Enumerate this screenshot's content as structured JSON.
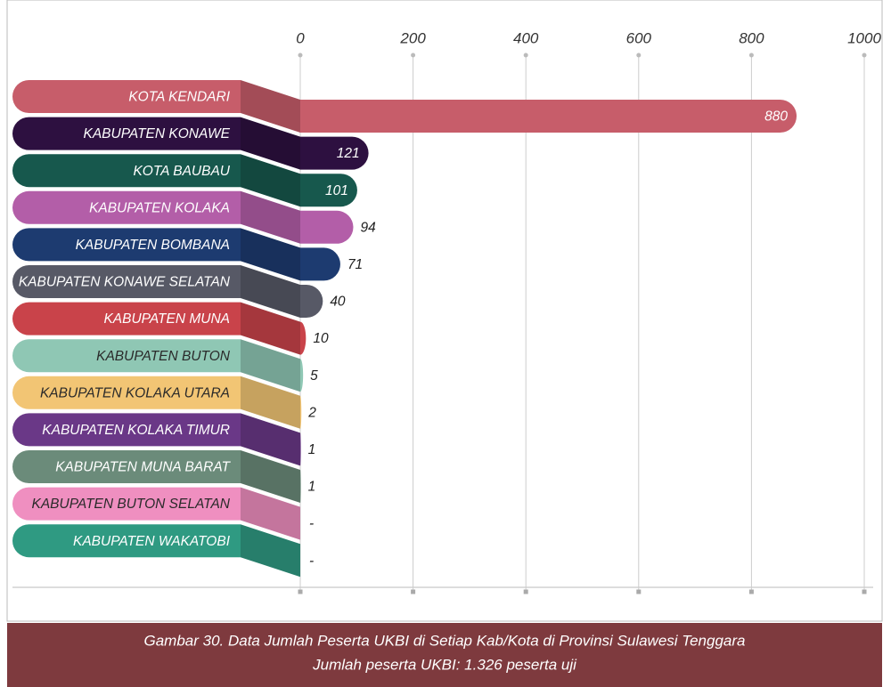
{
  "chart_data": {
    "type": "bar",
    "orientation": "horizontal",
    "title": "Gambar 30. Data Jumlah Peserta UKBI di Setiap Kab/Kota di Provinsi Sulawesi Tenggara",
    "subtitle": "Jumlah peserta UKBI: 1.326 peserta uji",
    "categories": [
      "KOTA KENDARI",
      "KABUPATEN KONAWE",
      "KOTA BAUBAU",
      "KABUPATEN KOLAKA",
      "KABUPATEN BOMBANA",
      "KABUPATEN KONAWE SELATAN",
      "KABUPATEN MUNA",
      "KABUPATEN BUTON",
      "KABUPATEN KOLAKA UTARA",
      "KABUPATEN KOLAKA TIMUR",
      "KABUPATEN MUNA BARAT",
      "KABUPATEN BUTON SELATAN",
      "KABUPATEN WAKATOBI"
    ],
    "values": [
      880,
      121,
      101,
      94,
      71,
      40,
      10,
      5,
      2,
      1,
      1,
      null,
      null
    ],
    "value_labels": [
      "880",
      "121",
      "101",
      "94",
      "71",
      "40",
      "10",
      "5",
      "2",
      "1",
      "1",
      "-",
      "-"
    ],
    "colors": [
      "#c75d6a",
      "#2d1040",
      "#17584d",
      "#b35ea8",
      "#1d3b70",
      "#575966",
      "#c9434a",
      "#8fc7b4",
      "#f2c574",
      "#6a3887",
      "#6b8b7a",
      "#ef8fc0",
      "#2f9a82"
    ],
    "xlim": [
      0,
      1000
    ],
    "xticks": [
      0,
      200,
      400,
      600,
      800,
      1000
    ],
    "grid": true
  }
}
